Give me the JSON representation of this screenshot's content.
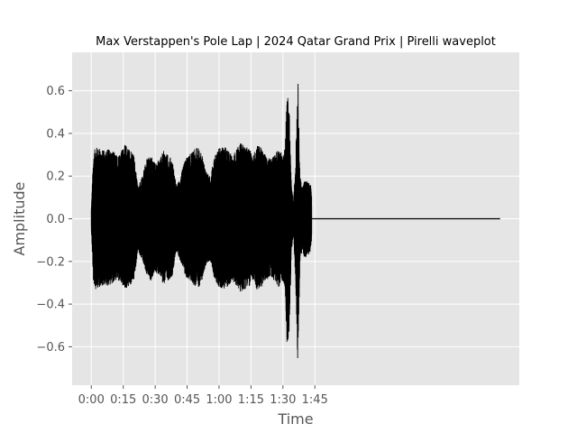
{
  "chart_data": {
    "type": "area",
    "title": "Max Verstappen's Pole Lap | 2024 Qatar Grand Prix | Pirelli waveplot",
    "xlabel": "Time",
    "ylabel": "Amplitude",
    "grid": true,
    "background": "#e5e5e5",
    "grid_color": "#ffffff",
    "wave_color": "#000000",
    "xlim": [
      -9,
      201
    ],
    "ylim": [
      -0.78,
      0.78
    ],
    "xticks": [
      {
        "value": 0,
        "label": "0:00"
      },
      {
        "value": 15,
        "label": "0:15"
      },
      {
        "value": 30,
        "label": "0:30"
      },
      {
        "value": 45,
        "label": "0:45"
      },
      {
        "value": 60,
        "label": "1:00"
      },
      {
        "value": 75,
        "label": "1:15"
      },
      {
        "value": 90,
        "label": "1:30"
      },
      {
        "value": 105,
        "label": "1:45"
      }
    ],
    "yticks": [
      {
        "value": -0.6,
        "label": "−0.6"
      },
      {
        "value": -0.4,
        "label": "−0.4"
      },
      {
        "value": -0.2,
        "label": "−0.2"
      },
      {
        "value": 0.0,
        "label": "0.0"
      },
      {
        "value": 0.2,
        "label": "0.2"
      },
      {
        "value": 0.4,
        "label": "0.4"
      },
      {
        "value": 0.6,
        "label": "0.6"
      }
    ],
    "duration_s": 192,
    "envelope": {
      "x": [
        0,
        1,
        2,
        4,
        6,
        8,
        10,
        12,
        14,
        16,
        18,
        20,
        22,
        24,
        26,
        28,
        30,
        32,
        34,
        36,
        38,
        40,
        42,
        44,
        46,
        48,
        50,
        52,
        54,
        56,
        58,
        60,
        62,
        64,
        66,
        68,
        70,
        72,
        74,
        76,
        78,
        80,
        82,
        84,
        86,
        88,
        90,
        91,
        92,
        93,
        94,
        95,
        96,
        97,
        98,
        99,
        100,
        101,
        102,
        103,
        104,
        105,
        107,
        110,
        113,
        116,
        120,
        125,
        130,
        135,
        140,
        145,
        150,
        155,
        160,
        165,
        170,
        175,
        180,
        185,
        190,
        192
      ],
      "max": [
        0.05,
        0.3,
        0.34,
        0.33,
        0.32,
        0.33,
        0.32,
        0.3,
        0.32,
        0.35,
        0.33,
        0.3,
        0.15,
        0.2,
        0.28,
        0.3,
        0.26,
        0.28,
        0.32,
        0.3,
        0.28,
        0.15,
        0.2,
        0.28,
        0.3,
        0.32,
        0.34,
        0.3,
        0.22,
        0.2,
        0.3,
        0.33,
        0.34,
        0.33,
        0.3,
        0.32,
        0.36,
        0.34,
        0.33,
        0.3,
        0.35,
        0.33,
        0.3,
        0.28,
        0.3,
        0.33,
        0.3,
        0.35,
        0.6,
        0.5,
        0.15,
        0.08,
        0.3,
        0.68,
        0.2,
        0.15,
        0.18,
        0.18,
        0.17,
        0.16,
        0.05,
        0.02,
        0.002,
        0.001,
        0.001,
        0.001,
        0.001,
        0.001,
        0.001,
        0.001,
        0.001,
        0.001,
        0.001,
        0.001,
        0.001,
        0.001,
        0.001,
        0.001,
        0.001,
        0.001,
        0.001,
        0.001
      ],
      "min": [
        -0.05,
        -0.3,
        -0.33,
        -0.32,
        -0.31,
        -0.32,
        -0.3,
        -0.29,
        -0.31,
        -0.33,
        -0.32,
        -0.29,
        -0.15,
        -0.2,
        -0.27,
        -0.29,
        -0.25,
        -0.27,
        -0.31,
        -0.29,
        -0.27,
        -0.15,
        -0.2,
        -0.27,
        -0.29,
        -0.31,
        -0.33,
        -0.29,
        -0.21,
        -0.2,
        -0.29,
        -0.32,
        -0.33,
        -0.32,
        -0.3,
        -0.31,
        -0.35,
        -0.33,
        -0.32,
        -0.29,
        -0.34,
        -0.32,
        -0.29,
        -0.27,
        -0.29,
        -0.32,
        -0.29,
        -0.33,
        -0.63,
        -0.52,
        -0.15,
        -0.08,
        -0.3,
        -0.7,
        -0.2,
        -0.15,
        -0.18,
        -0.18,
        -0.17,
        -0.15,
        -0.05,
        -0.02,
        -0.002,
        -0.001,
        -0.001,
        -0.001,
        -0.001,
        -0.001,
        -0.001,
        -0.001,
        -0.001,
        -0.001,
        -0.001,
        -0.001,
        -0.001,
        -0.001,
        -0.001,
        -0.001,
        -0.001,
        -0.001,
        -0.001,
        -0.001
      ]
    }
  }
}
